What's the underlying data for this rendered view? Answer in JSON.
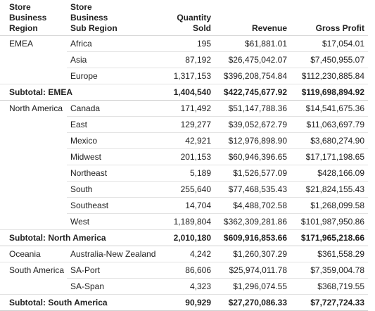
{
  "headers": {
    "region": [
      "Store",
      "Business",
      "Region"
    ],
    "subregion": [
      "Store",
      "Business",
      "Sub Region"
    ],
    "qty": [
      "Quantity",
      "Sold"
    ],
    "revenue": "Revenue",
    "profit": "Gross Profit"
  },
  "rows": [
    {
      "region": "EMEA",
      "sub": "Africa",
      "qty": "195",
      "rev": "$61,881.01",
      "gp": "$17,054.01"
    },
    {
      "region": "",
      "sub": "Asia",
      "qty": "87,192",
      "rev": "$26,475,042.07",
      "gp": "$7,450,955.07"
    },
    {
      "region": "",
      "sub": "Europe",
      "qty": "1,317,153",
      "rev": "$396,208,754.84",
      "gp": "$112,230,885.84"
    },
    {
      "label": "Subtotal: EMEA",
      "qty": "1,404,540",
      "rev": "$422,745,677.92",
      "gp": "$119,698,894.92"
    },
    {
      "region": "North America",
      "sub": "Canada",
      "qty": "171,492",
      "rev": "$51,147,788.36",
      "gp": "$14,541,675.36"
    },
    {
      "region": "",
      "sub": "East",
      "qty": "129,277",
      "rev": "$39,052,672.79",
      "gp": "$11,063,697.79"
    },
    {
      "region": "",
      "sub": "Mexico",
      "qty": "42,921",
      "rev": "$12,976,898.90",
      "gp": "$3,680,274.90"
    },
    {
      "region": "",
      "sub": "Midwest",
      "qty": "201,153",
      "rev": "$60,946,396.65",
      "gp": "$17,171,198.65"
    },
    {
      "region": "",
      "sub": "Northeast",
      "qty": "5,189",
      "rev": "$1,526,577.09",
      "gp": "$428,166.09"
    },
    {
      "region": "",
      "sub": "South",
      "qty": "255,640",
      "rev": "$77,468,535.43",
      "gp": "$21,824,155.43"
    },
    {
      "region": "",
      "sub": "Southeast",
      "qty": "14,704",
      "rev": "$4,488,702.58",
      "gp": "$1,268,099.58"
    },
    {
      "region": "",
      "sub": "West",
      "qty": "1,189,804",
      "rev": "$362,309,281.86",
      "gp": "$101,987,950.86"
    },
    {
      "label": "Subtotal: North America",
      "qty": "2,010,180",
      "rev": "$609,916,853.66",
      "gp": "$171,965,218.66"
    },
    {
      "region": "Oceania",
      "sub": "Australia-New Zealand",
      "qty": "4,242",
      "rev": "$1,260,307.29",
      "gp": "$361,558.29"
    },
    {
      "region": "South America",
      "sub": "SA-Port",
      "qty": "86,606",
      "rev": "$25,974,011.78",
      "gp": "$7,359,004.78"
    },
    {
      "region": "",
      "sub": "SA-Span",
      "qty": "4,323",
      "rev": "$1,296,074.55",
      "gp": "$368,719.55"
    },
    {
      "label": "Subtotal: South America",
      "qty": "90,929",
      "rev": "$27,270,086.33",
      "gp": "$7,727,724.33"
    }
  ]
}
